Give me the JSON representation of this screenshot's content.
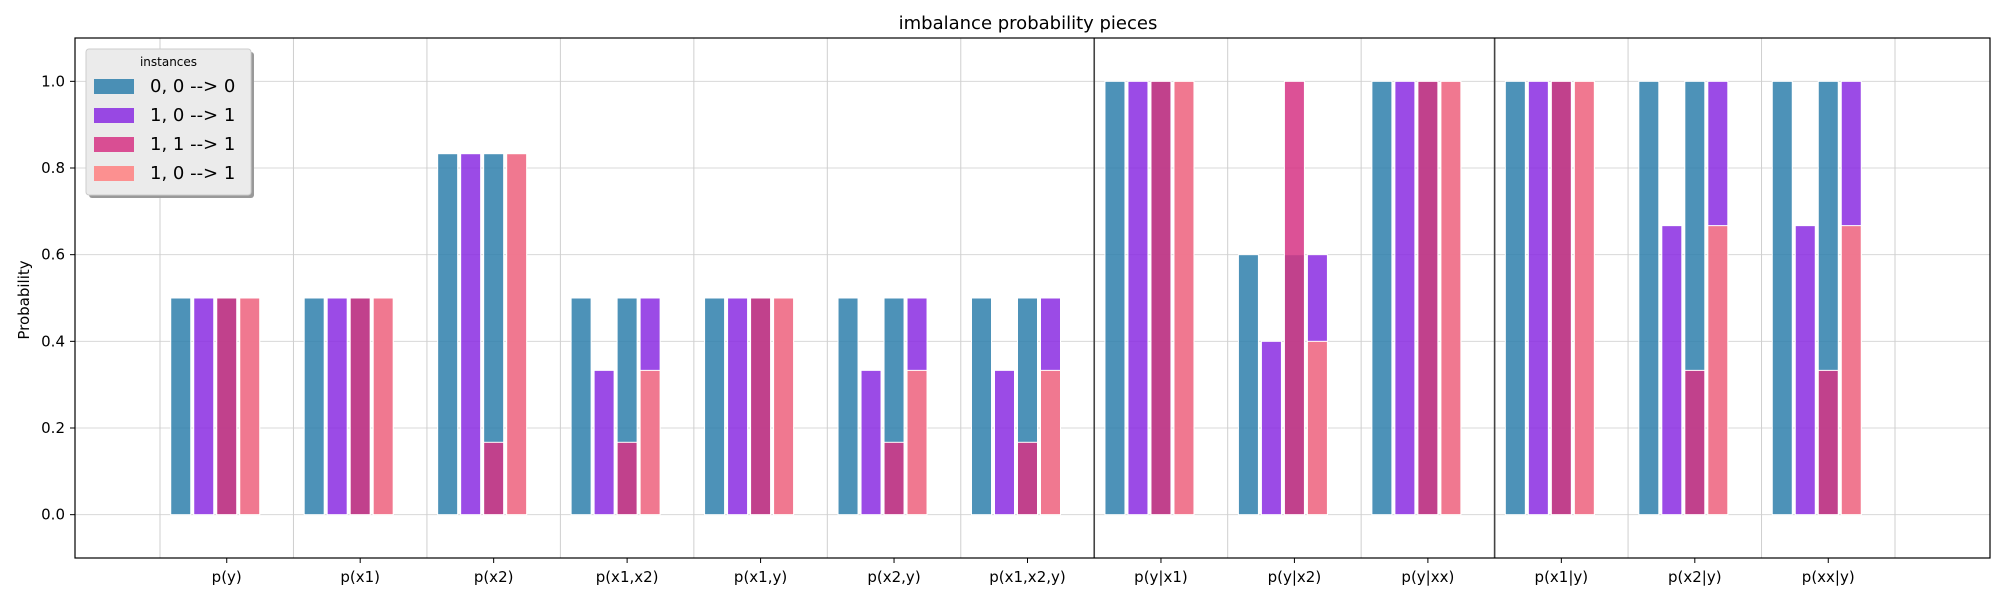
{
  "chart_data": {
    "type": "bar",
    "title": "imbalance probability pieces",
    "xlabel": "",
    "ylabel": "Probability",
    "ylim": [
      -0.1,
      1.1
    ],
    "yticks": [
      0.0,
      0.2,
      0.4,
      0.6,
      0.8,
      1.0
    ],
    "ytick_labels": [
      "0.0",
      "0.2",
      "0.4",
      "0.6",
      "0.8",
      "1.0"
    ],
    "grid": true,
    "legend": {
      "title": "instances",
      "placement": "top-left"
    },
    "categories": [
      "p(y)",
      "p(x1)",
      "p(x2)",
      "p(x1,x2)",
      "p(x1,y)",
      "p(x2,y)",
      "p(x1,x2,y)",
      "p(y|x1)",
      "p(y|x2)",
      "p(y|xx)",
      "p(x1|y)",
      "p(x2|y)",
      "p(xx|y)"
    ],
    "series": [
      {
        "name": "0, 0 --> 0",
        "color": "#2e7fab",
        "values": [
          [
            0.5,
            0.5
          ],
          [
            0.5,
            0.5
          ],
          [
            0.833,
            0.833
          ],
          [
            0.5,
            0.5
          ],
          [
            0.5,
            0.5
          ],
          [
            0.5,
            0.5
          ],
          [
            0.5,
            0.5
          ],
          [
            1.0,
            1.0
          ],
          [
            0.6,
            0.6
          ],
          [
            1.0,
            1.0
          ],
          [
            1.0,
            1.0
          ],
          [
            1.0,
            1.0
          ],
          [
            1.0,
            1.0
          ]
        ]
      },
      {
        "name": "1, 0 --> 1",
        "color": "#8a2be2",
        "values": [
          [
            0.5,
            0.5
          ],
          [
            0.5,
            0.5
          ],
          [
            0.833,
            0.833
          ],
          [
            0.333,
            0.5
          ],
          [
            0.5,
            0.5
          ],
          [
            0.333,
            0.5
          ],
          [
            0.333,
            0.5
          ],
          [
            1.0,
            1.0
          ],
          [
            0.4,
            0.6
          ],
          [
            1.0,
            1.0
          ],
          [
            1.0,
            1.0
          ],
          [
            0.667,
            1.0
          ],
          [
            0.667,
            1.0
          ]
        ]
      },
      {
        "name": "1, 1 --> 1",
        "color": "#d63384",
        "values": [
          0.5,
          0.5,
          0.167,
          0.167,
          0.5,
          0.167,
          0.167,
          1.0,
          1.0,
          1.0,
          1.0,
          0.333,
          0.333
        ]
      },
      {
        "name": "1, 0 --> 1",
        "color": "#ff8080",
        "values": [
          0.5,
          0.5,
          0.833,
          0.333,
          0.5,
          0.333,
          0.333,
          1.0,
          0.4,
          1.0,
          1.0,
          0.667,
          0.667
        ]
      }
    ],
    "group_separators_after": [
      "p(x1,x2,y)",
      "p(y|xx)"
    ]
  }
}
